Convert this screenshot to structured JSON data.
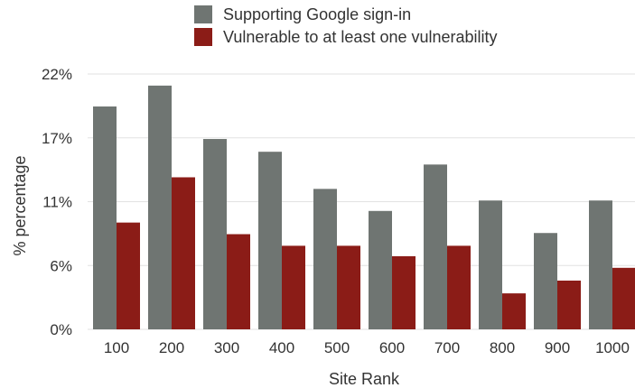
{
  "chart_data": {
    "type": "bar",
    "categories": [
      "100",
      "200",
      "300",
      "400",
      "500",
      "600",
      "700",
      "800",
      "900",
      "1000"
    ],
    "series": [
      {
        "name": "Supporting Google sign-in",
        "color": "#6f7572",
        "values": [
          19.2,
          21.0,
          16.4,
          15.3,
          12.1,
          10.2,
          14.2,
          11.1,
          8.3,
          11.1
        ]
      },
      {
        "name": "Vulnerable to at least one vulnerability",
        "color": "#8b1c17",
        "values": [
          9.2,
          13.1,
          8.2,
          7.2,
          7.2,
          6.3,
          7.2,
          3.1,
          4.2,
          5.3
        ]
      }
    ],
    "y_ticks": [
      {
        "value": 0,
        "label": "0%"
      },
      {
        "value": 5.5,
        "label": "6%"
      },
      {
        "value": 11,
        "label": "11%"
      },
      {
        "value": 16.5,
        "label": "17%"
      },
      {
        "value": 22,
        "label": "22%"
      }
    ],
    "ylim": [
      0,
      22
    ],
    "xlabel": "Site Rank",
    "ylabel": "% percentage",
    "grid": true,
    "legend_position": "top-center"
  }
}
